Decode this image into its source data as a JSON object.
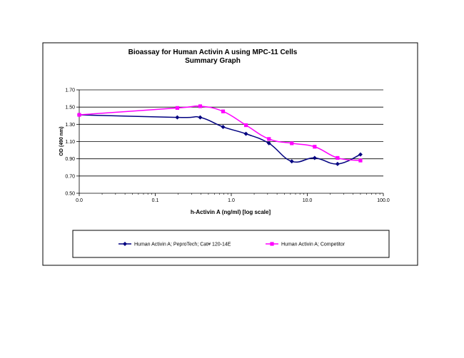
{
  "chart_data": {
    "type": "line",
    "title": "Bioassay for Human Activin A using MPC-11 Cells",
    "subtitle": "Summary Graph",
    "xlabel": "h-Activin A (ng/ml) [log scale]",
    "ylabel": "OD (490 nm)",
    "x_scale": "log",
    "x_tick_labels": [
      "0.0",
      "0.1",
      "1.0",
      "10.0",
      "100.0"
    ],
    "x_ticks": [
      0.01,
      0.1,
      1,
      10,
      100
    ],
    "xlim": [
      0.01,
      100
    ],
    "y_tick_labels": [
      "0.50",
      "0.70",
      "0.90",
      "1.10",
      "1.30",
      "1.50",
      "1.70"
    ],
    "y_ticks": [
      0.5,
      0.7,
      0.9,
      1.1,
      1.3,
      1.5,
      1.7
    ],
    "ylim": [
      0.5,
      1.7
    ],
    "grid": true,
    "legend_position": "bottom",
    "series": [
      {
        "name": "Human Activin A; PeproTech; Cat# 120-14E",
        "color": "#000080",
        "marker": "diamond",
        "x": [
          0.01,
          0.195,
          0.39,
          0.78,
          1.56,
          3.13,
          6.25,
          12.5,
          25,
          50
        ],
        "y": [
          1.41,
          1.38,
          1.38,
          1.27,
          1.19,
          1.08,
          0.87,
          0.91,
          0.84,
          0.95
        ]
      },
      {
        "name": "Human Activin A; Competitor",
        "color": "#ff00ff",
        "marker": "square",
        "x": [
          0.01,
          0.195,
          0.39,
          0.78,
          1.56,
          3.13,
          6.25,
          12.5,
          25,
          50
        ],
        "y": [
          1.41,
          1.49,
          1.51,
          1.45,
          1.29,
          1.13,
          1.08,
          1.04,
          0.91,
          0.88
        ]
      }
    ]
  }
}
